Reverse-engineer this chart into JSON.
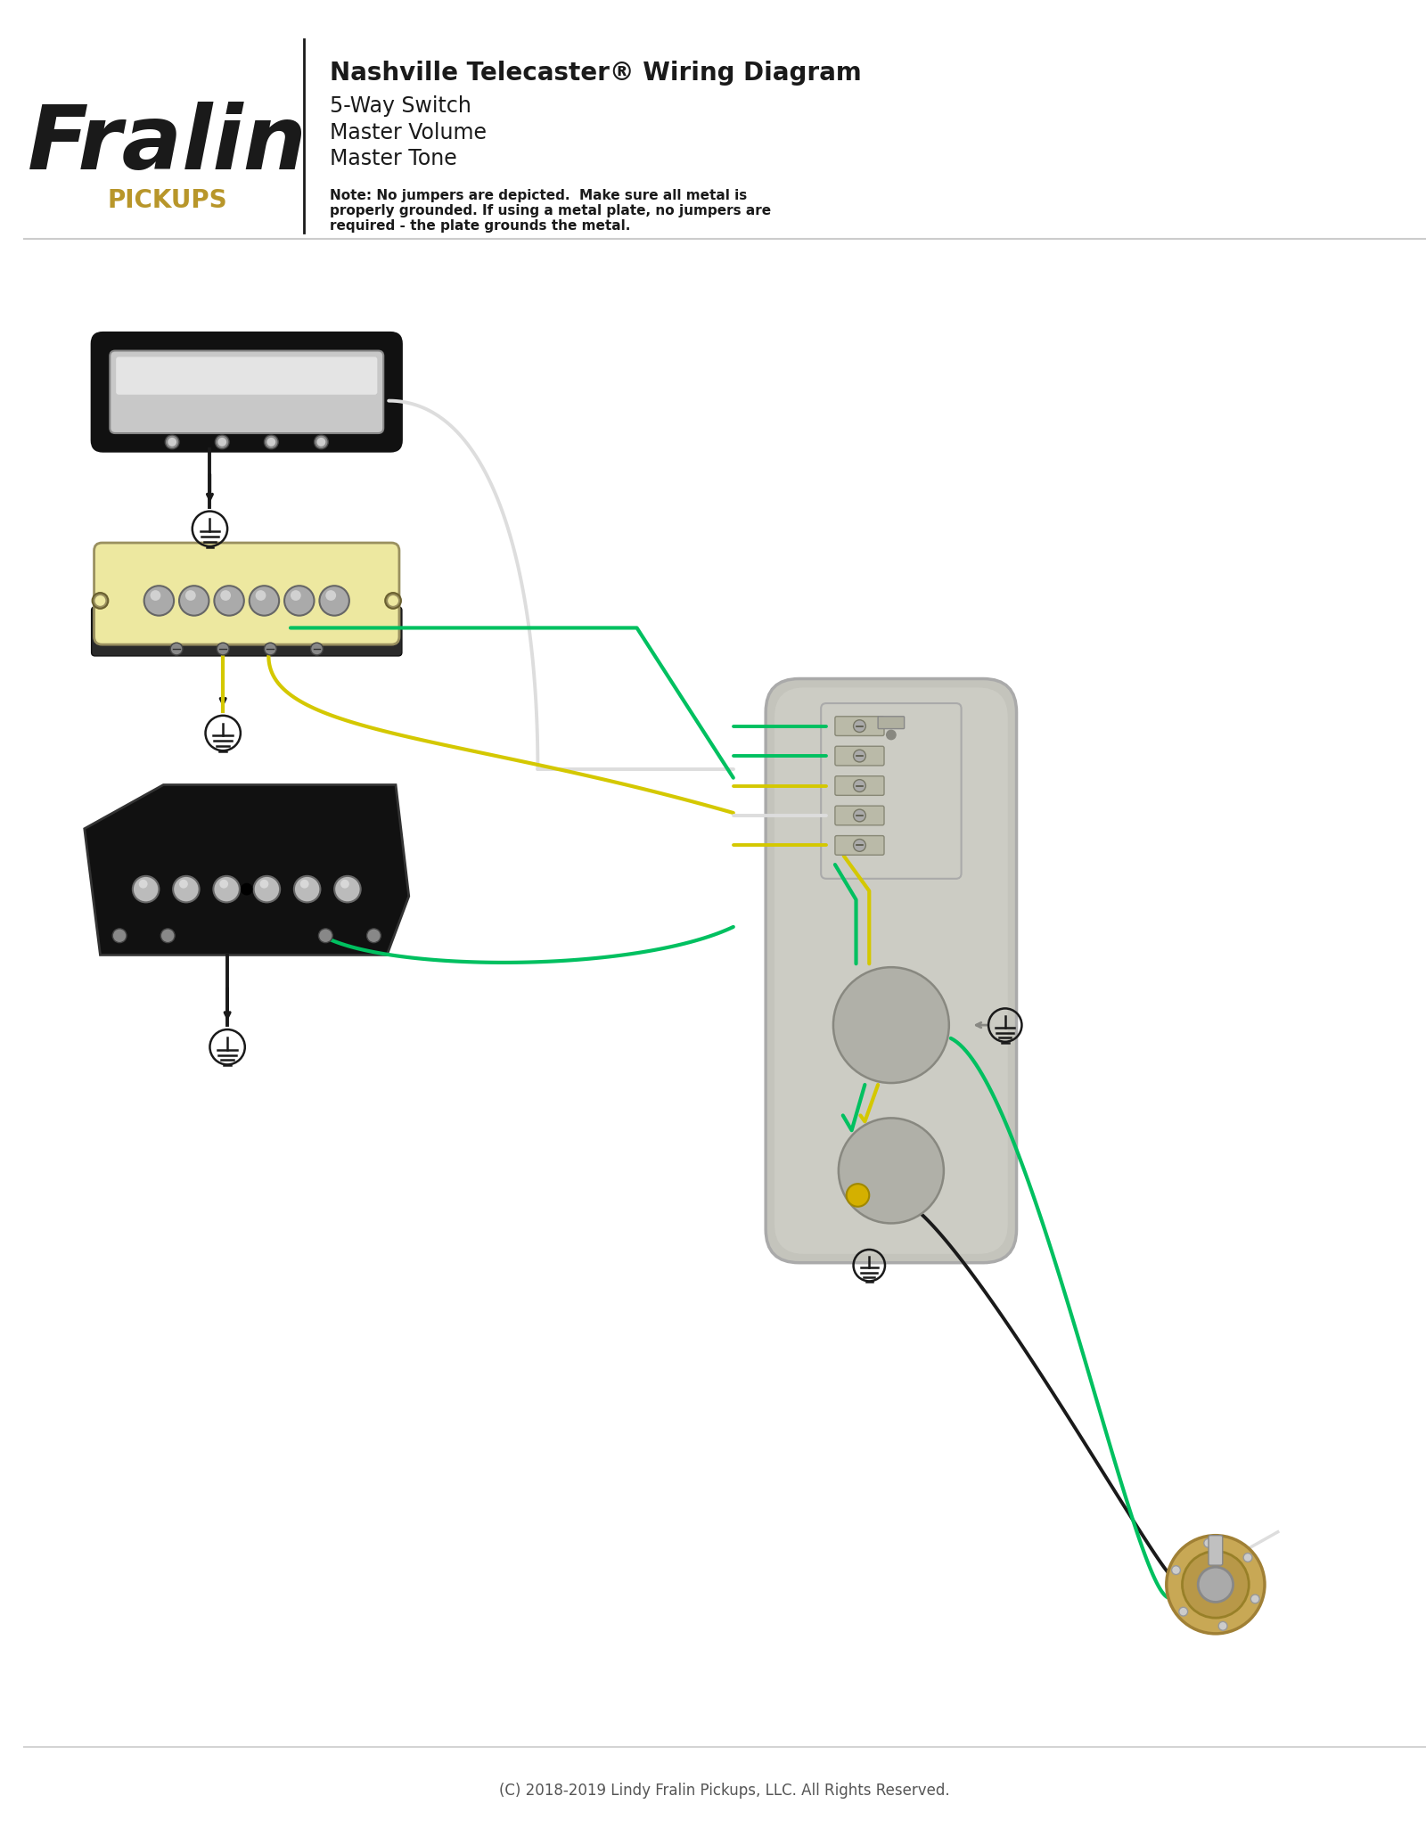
{
  "bg_color": "#ffffff",
  "title_bold": "Nashville Telecaster® Wiring Diagram",
  "title_lines": [
    "5-Way Switch",
    "Master Volume",
    "Master Tone"
  ],
  "note_text": "Note: No jumpers are depicted.  Make sure all metal is\nproperly grounded. If using a metal plate, no jumpers are\nrequired - the plate grounds the metal.",
  "copyright": "(C) 2018-2019 Lindy Fralin Pickups, LLC. All Rights Reserved.",
  "colors": {
    "black": "#1a1a1a",
    "white": "#ffffff",
    "chrome_light": "#e8e8e8",
    "chrome_dark": "#888888",
    "cream": "#f0e8b0",
    "wire_green": "#00c060",
    "wire_yellow": "#d4c800",
    "gold": "#b8962a"
  }
}
